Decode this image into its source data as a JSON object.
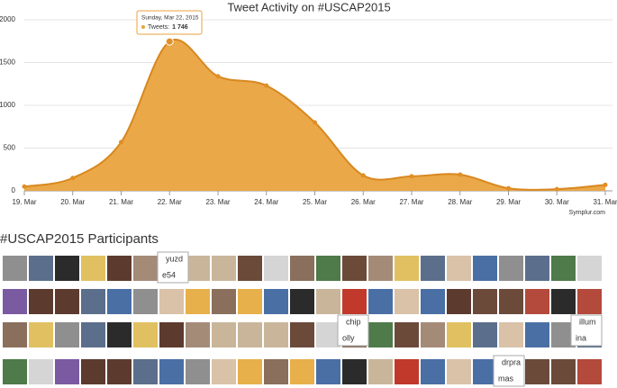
{
  "chart_data": {
    "type": "area",
    "title": "Tweet Activity on #USCAP2015",
    "categories": [
      "19. Mar",
      "20. Mar",
      "21. Mar",
      "22. Mar",
      "23. Mar",
      "24. Mar",
      "25. Mar",
      "26. Mar",
      "27. Mar",
      "28. Mar",
      "29. Mar",
      "30. Mar",
      "31. Mar"
    ],
    "series": [
      {
        "name": "Tweets",
        "color": "#e9a33f",
        "values": [
          50,
          150,
          570,
          1746,
          1340,
          1230,
          800,
          180,
          170,
          190,
          30,
          20,
          70
        ]
      }
    ],
    "ylim": [
      0,
      2000
    ],
    "yticks": [
      0,
      500,
      1000,
      1500,
      2000
    ],
    "grid": true,
    "tooltip": {
      "title": "Sunday, Mar 22, 2015",
      "label": "Tweets:",
      "value": "1 746"
    },
    "credit": "Symplur.com"
  },
  "participants": {
    "heading": "#USCAP2015 Participants",
    "broken_images": [
      [
        "yuzd",
        "e54"
      ],
      [
        "chip",
        "olly"
      ],
      [
        "illum",
        "ina"
      ],
      [
        "drpra",
        "mas"
      ]
    ]
  }
}
